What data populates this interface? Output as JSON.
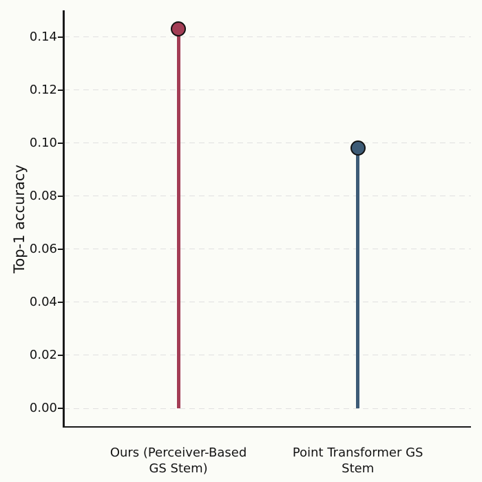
{
  "chart_data": {
    "type": "lollipop",
    "categories": [
      "Ours (Perceiver-Based\nGS Stem)",
      "Point Transformer GS\nStem"
    ],
    "values": [
      0.143,
      0.098
    ],
    "series_colors": [
      "#a33d55",
      "#3d5b76"
    ],
    "marker_edge_color": "#111111",
    "title": "",
    "xlabel": "",
    "ylabel": "Top-1 accuracy",
    "ylim": [
      -0.007,
      0.15
    ],
    "yticks": [
      0.0,
      0.02,
      0.04,
      0.06,
      0.08,
      0.1,
      0.12,
      0.14
    ],
    "ytick_labels": [
      "0.00",
      "0.02",
      "0.04",
      "0.06",
      "0.08",
      "0.10",
      "0.12",
      "0.14"
    ],
    "grid": "horizontal-dashed",
    "legend": "none",
    "background_color": "#fbfcf7",
    "grid_color": "#e0e0e0",
    "axis_color": "#1a1a1a"
  }
}
